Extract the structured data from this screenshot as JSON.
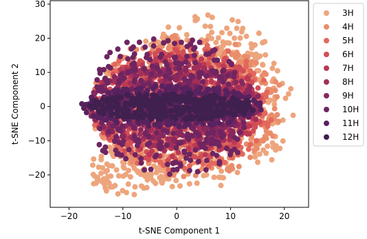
{
  "chart_data": {
    "type": "scatter",
    "xlabel": "t-SNE Component 1",
    "ylabel": "t-SNE Component 2",
    "xlim": [
      -23.5,
      24.5
    ],
    "ylim": [
      -29.5,
      31
    ],
    "xticks": [
      -20,
      -10,
      0,
      10,
      20
    ],
    "xtick_labels": [
      "−20",
      "−10",
      "0",
      "10",
      "20"
    ],
    "yticks": [
      -20,
      -10,
      0,
      10,
      20,
      30
    ],
    "ytick_labels": [
      "−20",
      "−10",
      "0",
      "10",
      "20",
      "30"
    ],
    "legend_position": "outside-right",
    "grid": false,
    "series": [
      {
        "name": "3H",
        "color": "#eda57d"
      },
      {
        "name": "4H",
        "color": "#e98d6b"
      },
      {
        "name": "5H",
        "color": "#e3685c"
      },
      {
        "name": "6H",
        "color": "#d14e56"
      },
      {
        "name": "7H",
        "color": "#bb3955"
      },
      {
        "name": "8H",
        "color": "#a12e5b"
      },
      {
        "name": "9H",
        "color": "#88285e"
      },
      {
        "name": "10H",
        "color": "#6e2561"
      },
      {
        "name": "11H",
        "color": "#57225f"
      },
      {
        "name": "12H",
        "color": "#40204e"
      }
    ],
    "clusters": [
      {
        "series": "3H",
        "center": [
          3,
          -1
        ],
        "rx": 19,
        "ry": 23,
        "points": 420
      },
      {
        "series": "3H",
        "center": [
          -9,
          -19
        ],
        "rx": 8,
        "ry": 7,
        "points": 90
      },
      {
        "series": "3H",
        "center": [
          6,
          17
        ],
        "rx": 11,
        "ry": 10,
        "points": 90
      },
      {
        "series": "4H",
        "center": [
          2,
          0
        ],
        "rx": 18,
        "ry": 21,
        "points": 380
      },
      {
        "series": "5H",
        "center": [
          1,
          0
        ],
        "rx": 17,
        "ry": 19,
        "points": 340
      },
      {
        "series": "6H",
        "center": [
          0.5,
          0
        ],
        "rx": 16,
        "ry": 17,
        "points": 320
      },
      {
        "series": "7H",
        "center": [
          0,
          0
        ],
        "rx": 16,
        "ry": 15,
        "points": 300
      },
      {
        "series": "8H",
        "center": [
          -0.5,
          0
        ],
        "rx": 16,
        "ry": 13,
        "points": 280
      },
      {
        "series": "9H",
        "center": [
          -0.5,
          0.5
        ],
        "rx": 16,
        "ry": 12,
        "points": 260
      },
      {
        "series": "10H",
        "center": [
          -2,
          8
        ],
        "rx": 13,
        "ry": 13,
        "points": 200
      },
      {
        "series": "10H",
        "center": [
          -1,
          -8
        ],
        "rx": 14,
        "ry": 12,
        "points": 200
      },
      {
        "series": "11H",
        "center": [
          -1,
          0
        ],
        "rx": 17,
        "ry": 6,
        "points": 320
      },
      {
        "series": "12H",
        "center": [
          -1,
          0
        ],
        "rx": 16,
        "ry": 4,
        "points": 320
      }
    ]
  }
}
